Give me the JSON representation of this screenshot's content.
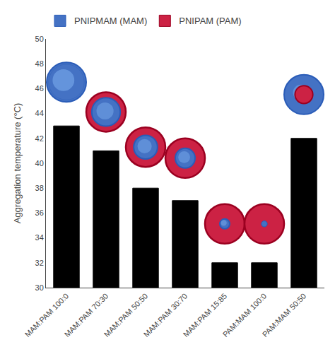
{
  "chart_data": {
    "type": "bar",
    "categories": [
      "MAM:PAM 100:0",
      "MAM:PAM 70:30",
      "MAM:PAM 50:50",
      "MAM:PAM 30:70",
      "MAM:PAM 15:85",
      "PAM:MAM 100:0",
      "PAM:MAM 50:50"
    ],
    "values": [
      43.0,
      41.0,
      38.0,
      37.0,
      32.0,
      32.0,
      42.0
    ],
    "color": "#000000",
    "ylabel": "Aggregation temperature (°C)",
    "ylim": [
      30,
      50
    ],
    "yticks": [
      30,
      32,
      34,
      36,
      38,
      40,
      42,
      44,
      46,
      48,
      50
    ],
    "grid": false,
    "legend": "upper left",
    "legend_entries": [
      {
        "name": "PNIPMAM (MAM)",
        "color": "#4472C4"
      },
      {
        "name": "PNIPAM (PAM)",
        "color": "#CC2244"
      }
    ]
  }
}
